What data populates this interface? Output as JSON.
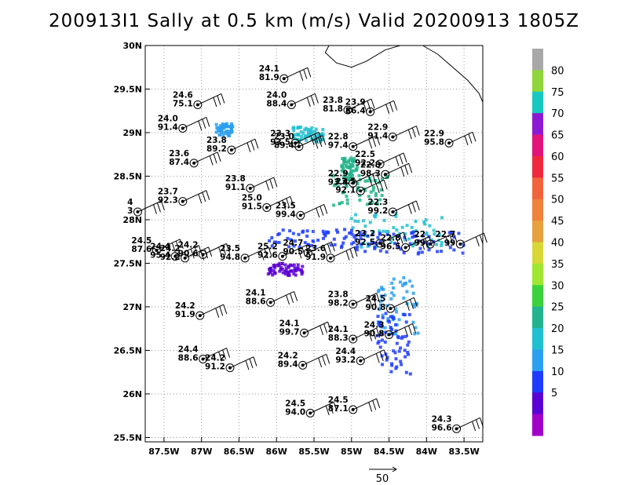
{
  "title": "200913I1 Sally at 0.5 km (m/s) Valid 20200913 1805Z",
  "x_ticks": [
    "87.5W",
    "87W",
    "86.5W",
    "86W",
    "85.5W",
    "85W",
    "84.5W",
    "84W",
    "83.5W"
  ],
  "y_ticks": [
    "30N",
    "29.5N",
    "29N",
    "28.5N",
    "28N",
    "27.5N",
    "27N",
    "26.5N",
    "26N",
    "25.5N"
  ],
  "colorbar": {
    "labels": [
      "80",
      "75",
      "70",
      "65",
      "60",
      "55",
      "50",
      "45",
      "40",
      "35",
      "30",
      "25",
      "20",
      "15",
      "10",
      "5"
    ],
    "colors": [
      "#a8a8a8",
      "#8ed63a",
      "#18c8c0",
      "#8c1ad2",
      "#e0147a",
      "#f0283c",
      "#f0643c",
      "#f0823c",
      "#e6a03c",
      "#d7d737",
      "#a0e632",
      "#3cd23c",
      "#22b48c",
      "#20c0d0",
      "#2ba0f0",
      "#1e3cff",
      "#5a00d2",
      "#a000c8"
    ]
  },
  "reference_vector": {
    "label": "50"
  },
  "stations": [
    {
      "speed": "24.1",
      "dir": "81.9",
      "lon": -85.9,
      "lat": 29.62
    },
    {
      "speed": "24.6",
      "dir": "75.1",
      "lon": -87.05,
      "lat": 29.32
    },
    {
      "speed": "24.0",
      "dir": "88.4",
      "lon": -85.8,
      "lat": 29.32
    },
    {
      "speed": "23.8",
      "dir": "81.8",
      "lon": -85.05,
      "lat": 29.26
    },
    {
      "speed": "23.9",
      "dir": "86.4",
      "lon": -84.75,
      "lat": 29.24
    },
    {
      "speed": "24.0",
      "dir": "91.4",
      "lon": -87.25,
      "lat": 29.05
    },
    {
      "speed": "22.9",
      "dir": "91.4",
      "lon": -84.45,
      "lat": 28.95
    },
    {
      "speed": "22.9",
      "dir": "95.8",
      "lon": -83.7,
      "lat": 28.88
    },
    {
      "speed": "23.8",
      "dir": "89.2",
      "lon": -86.6,
      "lat": 28.8
    },
    {
      "speed": "23.3",
      "dir": "93.5",
      "lon": -85.75,
      "lat": 28.88
    },
    {
      "speed": "23.0",
      "dir": "89.4",
      "lon": -85.7,
      "lat": 28.84
    },
    {
      "speed": "22.8",
      "dir": "97.4",
      "lon": -84.98,
      "lat": 28.84
    },
    {
      "speed": "23.6",
      "dir": "87.4",
      "lon": -87.1,
      "lat": 28.65
    },
    {
      "speed": "22.5",
      "dir": "92.2",
      "lon": -84.62,
      "lat": 28.64
    },
    {
      "speed": "22.8",
      "dir": "98.3",
      "lon": -84.55,
      "lat": 28.52
    },
    {
      "speed": "23.8",
      "dir": "91.1",
      "lon": -86.35,
      "lat": 28.36
    },
    {
      "speed": "22.9",
      "dir": "93.4",
      "lon": -84.98,
      "lat": 28.42
    },
    {
      "speed": "23.5",
      "dir": "92.1",
      "lon": -84.88,
      "lat": 28.33
    },
    {
      "speed": "23.7",
      "dir": "92.3",
      "lon": -87.25,
      "lat": 28.21
    },
    {
      "speed": "25.0",
      "dir": "91.5",
      "lon": -86.13,
      "lat": 28.14
    },
    {
      "speed": "22.3",
      "dir": "99.2",
      "lon": -84.45,
      "lat": 28.09
    },
    {
      "speed": "23.5",
      "dir": "99.4",
      "lon": -85.68,
      "lat": 28.05
    },
    {
      "speed": "4",
      "dir": "3",
      "lon": -87.85,
      "lat": 28.09
    },
    {
      "speed": "23.2",
      "dir": "92.5",
      "lon": -84.62,
      "lat": 27.73
    },
    {
      "speed": "22.8",
      "dir": "96.5",
      "lon": -84.28,
      "lat": 27.68
    },
    {
      "speed": "22",
      "dir": "99",
      "lon": -83.95,
      "lat": 27.72
    },
    {
      "speed": "22.7",
      "dir": "99",
      "lon": -83.55,
      "lat": 27.72
    },
    {
      "speed": "24.5",
      "dir": "87.6",
      "lon": -87.6,
      "lat": 27.65
    },
    {
      "speed": "24.4",
      "dir": "95.4",
      "lon": -87.35,
      "lat": 27.58
    },
    {
      "speed": "24.2",
      "dir": "92.2",
      "lon": -87.22,
      "lat": 27.56
    },
    {
      "speed": "24.2",
      "dir": "90.6",
      "lon": -86.98,
      "lat": 27.6
    },
    {
      "speed": "23.5",
      "dir": "94.8",
      "lon": -86.42,
      "lat": 27.56
    },
    {
      "speed": "25.2",
      "dir": "92.6",
      "lon": -85.92,
      "lat": 27.58
    },
    {
      "speed": "24.7",
      "dir": "90.5",
      "lon": -85.58,
      "lat": 27.62
    },
    {
      "speed": "23.6",
      "dir": "91.9",
      "lon": -85.28,
      "lat": 27.56
    },
    {
      "speed": "24.1",
      "dir": "88.6",
      "lon": -86.08,
      "lat": 27.05
    },
    {
      "speed": "23.8",
      "dir": "98.2",
      "lon": -84.98,
      "lat": 27.03
    },
    {
      "speed": "24.5",
      "dir": "90.8",
      "lon": -84.48,
      "lat": 26.98
    },
    {
      "speed": "24.2",
      "dir": "91.9",
      "lon": -87.02,
      "lat": 26.9
    },
    {
      "speed": "24.1",
      "dir": "99.7",
      "lon": -85.63,
      "lat": 26.7
    },
    {
      "speed": "24.1",
      "dir": "88.3",
      "lon": -84.98,
      "lat": 26.63
    },
    {
      "speed": "24.3",
      "dir": "90.8",
      "lon": -84.5,
      "lat": 26.68
    },
    {
      "speed": "24.4",
      "dir": "88.6",
      "lon": -86.98,
      "lat": 26.4
    },
    {
      "speed": "24.2",
      "dir": "91.2",
      "lon": -86.62,
      "lat": 26.3
    },
    {
      "speed": "24.2",
      "dir": "89.4",
      "lon": -85.65,
      "lat": 26.33
    },
    {
      "speed": "24.4",
      "dir": "93.2",
      "lon": -84.88,
      "lat": 26.38
    },
    {
      "speed": "24.5",
      "dir": "87.1",
      "lon": -84.98,
      "lat": 25.82
    },
    {
      "speed": "24.5",
      "dir": "94.0",
      "lon": -85.55,
      "lat": 25.78
    },
    {
      "speed": "24.3",
      "dir": "96.6",
      "lon": -83.6,
      "lat": 25.6
    }
  ]
}
